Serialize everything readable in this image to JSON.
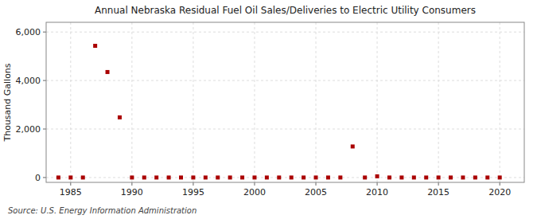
{
  "chart_data": {
    "type": "scatter",
    "title": "Annual Nebraska Residual Fuel Oil Sales/Deliveries to Electric Utility Consumers",
    "ylabel": "Thousand Gallons",
    "source": "Source: U.S. Energy Information Administration",
    "color": "#aa0000",
    "marker": "square",
    "grid": true,
    "xlim": [
      1983,
      2022
    ],
    "ylim": [
      -200,
      6400
    ],
    "xticks": [
      1985,
      1990,
      1995,
      2000,
      2005,
      2010,
      2015,
      2020
    ],
    "yticks": [
      0,
      {
        "value": 2000,
        "label": "2,000"
      },
      {
        "value": 4000,
        "label": "4,000"
      },
      {
        "value": 6000,
        "label": "6,000"
      }
    ],
    "x": [
      1984,
      1985,
      1986,
      1987,
      1988,
      1989,
      1990,
      1991,
      1992,
      1993,
      1994,
      1995,
      1996,
      1997,
      1998,
      1999,
      2000,
      2001,
      2002,
      2003,
      2004,
      2005,
      2006,
      2007,
      2008,
      2009,
      2010,
      2011,
      2012,
      2013,
      2014,
      2015,
      2016,
      2017,
      2018,
      2019,
      2020
    ],
    "values": [
      0,
      0,
      0,
      5430,
      4350,
      2480,
      0,
      0,
      0,
      0,
      0,
      0,
      0,
      0,
      0,
      0,
      0,
      0,
      0,
      0,
      0,
      0,
      0,
      0,
      1280,
      0,
      50,
      0,
      0,
      0,
      0,
      0,
      0,
      0,
      0,
      0,
      0
    ]
  }
}
